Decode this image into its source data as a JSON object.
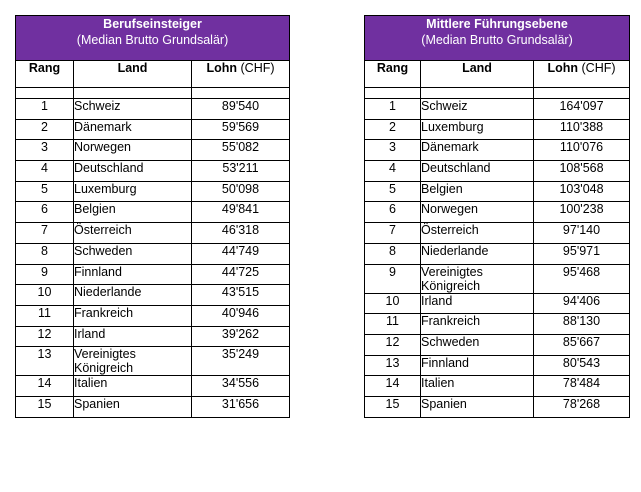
{
  "left": {
    "title": "Berufseinsteiger",
    "subtitle": "(Median Brutto Grundsalär)",
    "headers": {
      "rank": "Rang",
      "land": "Land",
      "lohn": "Lohn",
      "unit": "(CHF)"
    },
    "rows": [
      {
        "rank": "1",
        "land": "Schweiz",
        "lohn": "89'540"
      },
      {
        "rank": "2",
        "land": "Dänemark",
        "lohn": "59'569"
      },
      {
        "rank": "3",
        "land": "Norwegen",
        "lohn": "55'082"
      },
      {
        "rank": "4",
        "land": "Deutschland",
        "lohn": "53'211"
      },
      {
        "rank": "5",
        "land": "Luxemburg",
        "lohn": "50'098"
      },
      {
        "rank": "6",
        "land": "Belgien",
        "lohn": "49'841"
      },
      {
        "rank": "7",
        "land": "Österreich",
        "lohn": "46'318"
      },
      {
        "rank": "8",
        "land": "Schweden",
        "lohn": "44'749"
      },
      {
        "rank": "9",
        "land": "Finnland",
        "lohn": "44'725"
      },
      {
        "rank": "10",
        "land": "Niederlande",
        "lohn": "43'515"
      },
      {
        "rank": "11",
        "land": "Frankreich",
        "lohn": "40'946"
      },
      {
        "rank": "12",
        "land": "Irland",
        "lohn": "39'262"
      },
      {
        "rank": "13",
        "land": "Vereinigtes Königreich",
        "lohn": "35'249"
      },
      {
        "rank": "14",
        "land": "Italien",
        "lohn": "34'556"
      },
      {
        "rank": "15",
        "land": "Spanien",
        "lohn": "31'656"
      }
    ]
  },
  "right": {
    "title": "Mittlere Führungsebene",
    "subtitle": "(Median Brutto Grundsalär)",
    "headers": {
      "rank": "Rang",
      "land": "Land",
      "lohn": "Lohn",
      "unit": "(CHF)"
    },
    "rows": [
      {
        "rank": "1",
        "land": "Schweiz",
        "lohn": "164'097"
      },
      {
        "rank": "2",
        "land": "Luxemburg",
        "lohn": "110'388"
      },
      {
        "rank": "3",
        "land": "Dänemark",
        "lohn": "110'076"
      },
      {
        "rank": "4",
        "land": "Deutschland",
        "lohn": "108'568"
      },
      {
        "rank": "5",
        "land": "Belgien",
        "lohn": "103'048"
      },
      {
        "rank": "6",
        "land": "Norwegen",
        "lohn": "100'238"
      },
      {
        "rank": "7",
        "land": "Österreich",
        "lohn": "97'140"
      },
      {
        "rank": "8",
        "land": "Niederlande",
        "lohn": "95'971"
      },
      {
        "rank": "9",
        "land": "Vereinigtes Königreich",
        "lohn": "95'468"
      },
      {
        "rank": "10",
        "land": "Irland",
        "lohn": "94'406"
      },
      {
        "rank": "11",
        "land": "Frankreich",
        "lohn": "88'130"
      },
      {
        "rank": "12",
        "land": "Schweden",
        "lohn": "85'667"
      },
      {
        "rank": "13",
        "land": "Finnland",
        "lohn": "80'543"
      },
      {
        "rank": "14",
        "land": "Italien",
        "lohn": "78'484"
      },
      {
        "rank": "15",
        "land": "Spanien",
        "lohn": "78'268"
      }
    ]
  }
}
